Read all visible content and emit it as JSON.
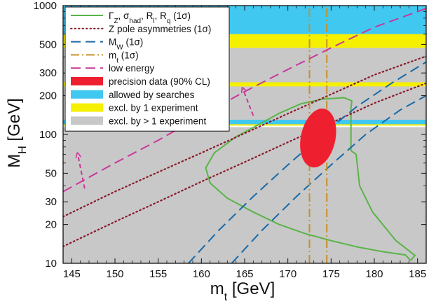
{
  "chart_data": {
    "type": "line",
    "xlabel": "m",
    "xlabel_sub": "t",
    "xlabel_unit": "[GeV]",
    "ylabel": "M",
    "ylabel_sub": "H",
    "ylabel_unit": "[GeV]",
    "xlim": [
      144,
      186
    ],
    "ylim": [
      10,
      1000
    ],
    "yscale": "log",
    "x_ticks": [
      145,
      150,
      155,
      160,
      165,
      170,
      175,
      180,
      185
    ],
    "y_ticks": [
      10,
      20,
      30,
      50,
      100,
      200,
      300,
      500,
      1000
    ],
    "background_region": {
      "name": "excl. by > 1 experiment",
      "color": "#c8c8c8"
    },
    "bands": [
      {
        "name": "allowed by searches",
        "color": "#40c8f0",
        "y": [
          600,
          1000
        ]
      },
      {
        "name": "excl. by 1 experiment",
        "color": "#f5f000",
        "y": [
          470,
          600
        ]
      },
      {
        "name": "excl. by 1 experiment",
        "color": "#f5f000",
        "y": [
          236,
          254
        ]
      },
      {
        "name": "allowed by searches",
        "color": "#40c8f0",
        "y": [
          120,
          130
        ]
      },
      {
        "name": "excl. by 1 experiment",
        "color": "#f5f000",
        "y": [
          117,
          120
        ]
      },
      {
        "name": "allowed by searches",
        "color": "#ffffff",
        "y": [
          114,
          117
        ]
      }
    ],
    "series": [
      {
        "name": "Γ_Z, σ_had, R_l, R_q (1σ)",
        "style": "solid",
        "color": "#5ab448",
        "points": [
          [
            184.2,
            10.5
          ],
          [
            183.6,
            11.6
          ],
          [
            181,
            12.3
          ],
          [
            178,
            13.4
          ],
          [
            175,
            15
          ],
          [
            172,
            17
          ],
          [
            169,
            20
          ],
          [
            166,
            25
          ],
          [
            163,
            32
          ],
          [
            161,
            42
          ],
          [
            160.5,
            55
          ],
          [
            161.5,
            72
          ],
          [
            164,
            96
          ],
          [
            166.5,
            118
          ],
          [
            169,
            146
          ],
          [
            171.5,
            173
          ],
          [
            174,
            188
          ],
          [
            176.5,
            193
          ],
          [
            177.4,
            182
          ],
          [
            177.3,
            160
          ],
          [
            177.3,
            75
          ],
          [
            177.9,
            70
          ],
          [
            178.3,
            40
          ],
          [
            179.8,
            25
          ],
          [
            182.5,
            15
          ],
          [
            184.7,
            11.5
          ],
          [
            184.2,
            10.5
          ]
        ]
      },
      {
        "name": "Z pole asymmetries (1σ)",
        "style": "dotted",
        "color": "#8a1a2a",
        "lines": [
          [
            [
              144,
              23
            ],
            [
              150,
              36
            ],
            [
              155,
              51
            ],
            [
              160,
              72
            ],
            [
              165,
              102
            ],
            [
              170,
              145
            ],
            [
              175,
              205
            ],
            [
              180,
              290
            ],
            [
              186,
              405
            ]
          ],
          [
            [
              144,
              13.5
            ],
            [
              150,
              21
            ],
            [
              155,
              30
            ],
            [
              160,
              43
            ],
            [
              165,
              61
            ],
            [
              170,
              87
            ],
            [
              175,
              123
            ],
            [
              180,
              175
            ],
            [
              186,
              250
            ]
          ]
        ]
      },
      {
        "name": "M_W (1σ)",
        "style": "dashed",
        "color": "#1a6aa8",
        "lines": [
          [
            [
              158.5,
              10
            ],
            [
              162,
              18
            ],
            [
              166,
              33
            ],
            [
              170,
              58
            ],
            [
              174,
              100
            ],
            [
              178,
              165
            ],
            [
              182,
              250
            ],
            [
              186,
              365
            ]
          ],
          [
            [
              163.5,
              10
            ],
            [
              167,
              18
            ],
            [
              171,
              33
            ],
            [
              175,
              58
            ],
            [
              179,
              100
            ],
            [
              183,
              155
            ],
            [
              186,
              200
            ]
          ]
        ]
      },
      {
        "name": "m_t (1σ)",
        "style": "dashdot",
        "color": "#c89028",
        "lines": [
          [
            [
              172.5,
              10
            ],
            [
              172.5,
              1000
            ]
          ],
          [
            [
              174.5,
              10
            ],
            [
              174.5,
              1000
            ]
          ]
        ]
      },
      {
        "name": "low energy",
        "style": "dashed",
        "color": "#c8389a",
        "lines": [
          [
            [
              144,
              36
            ],
            [
              150,
              60
            ],
            [
              155,
              90
            ],
            [
              160,
              140
            ],
            [
              165,
              215
            ],
            [
              170,
              320
            ],
            [
              175,
              470
            ],
            [
              180,
              680
            ],
            [
              186,
              950
            ]
          ]
        ],
        "arrows": [
          {
            "from": [
              146.5,
              38
            ],
            "to": [
              145.7,
              70
            ]
          },
          {
            "from": [
              166,
              140
            ],
            "to": [
              164.8,
              225
            ]
          }
        ]
      },
      {
        "name": "precision data (90% CL)",
        "style": "fill",
        "color": "#ee2030",
        "ellipse": {
          "center": [
            173.5,
            96
          ],
          "x_range": [
            171.6,
            175.6
          ],
          "y_range": [
            55,
            160
          ]
        }
      }
    ],
    "legend": {
      "placement": "top-left",
      "entries": [
        {
          "label": "Γ_Z, σ_had, R_l, R_q (1σ)",
          "style": "solid",
          "color": "#5ab448"
        },
        {
          "label": "Z pole asymmetries (1σ)",
          "style": "dotted",
          "color": "#8a1a2a"
        },
        {
          "label": "M_W (1σ)",
          "style": "dashed",
          "color": "#1a6aa8"
        },
        {
          "label": "m_t (1σ)",
          "style": "dashdot",
          "color": "#c89028"
        },
        {
          "label": "low energy",
          "style": "dashed",
          "color": "#c8389a"
        },
        {
          "label": "precision data (90% CL)",
          "style": "box",
          "color": "#ee2030"
        },
        {
          "label": "allowed by searches",
          "style": "box",
          "color": "#40c8f0"
        },
        {
          "label": "excl. by 1 experiment",
          "style": "box",
          "color": "#f5f000"
        },
        {
          "label": "excl. by > 1 experiment",
          "style": "box",
          "color": "#c8c8c8"
        }
      ]
    }
  }
}
